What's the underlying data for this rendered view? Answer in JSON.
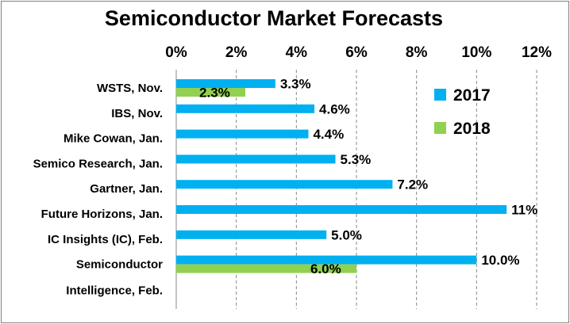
{
  "chart_data": {
    "type": "bar",
    "orientation": "horizontal",
    "title": "Semiconductor Market Forecasts",
    "categories": [
      [
        "WSTS, Nov."
      ],
      [
        "IBS, Nov."
      ],
      [
        "Mike Cowan, Jan."
      ],
      [
        "Semico Research, Jan."
      ],
      [
        "Gartner, Jan."
      ],
      [
        "Future Horizons, Jan."
      ],
      [
        "IC Insights (IC), Feb."
      ],
      [
        "Semiconductor",
        "Intelligence, Feb."
      ]
    ],
    "x_ticks": [
      "0%",
      "2%",
      "4%",
      "6%",
      "8%",
      "10%",
      "12%"
    ],
    "xlim": [
      0,
      12
    ],
    "x_axis_position": "top",
    "grid": "vertical dashed",
    "legend_position": "right",
    "series": [
      {
        "name": "2017",
        "color": "#00b0f0",
        "values": [
          3.3,
          4.6,
          4.4,
          5.3,
          7.2,
          11,
          5.0,
          10.0
        ],
        "labels": [
          "3.3%",
          "4.6%",
          "4.4%",
          "5.3%",
          "7.2%",
          "11%",
          "5.0%",
          "10.0%"
        ]
      },
      {
        "name": "2018",
        "color": "#92d050",
        "values": [
          2.3,
          null,
          null,
          null,
          null,
          null,
          null,
          6.0
        ],
        "labels": [
          "2.3%",
          null,
          null,
          null,
          null,
          null,
          null,
          "6.0%"
        ]
      }
    ]
  }
}
